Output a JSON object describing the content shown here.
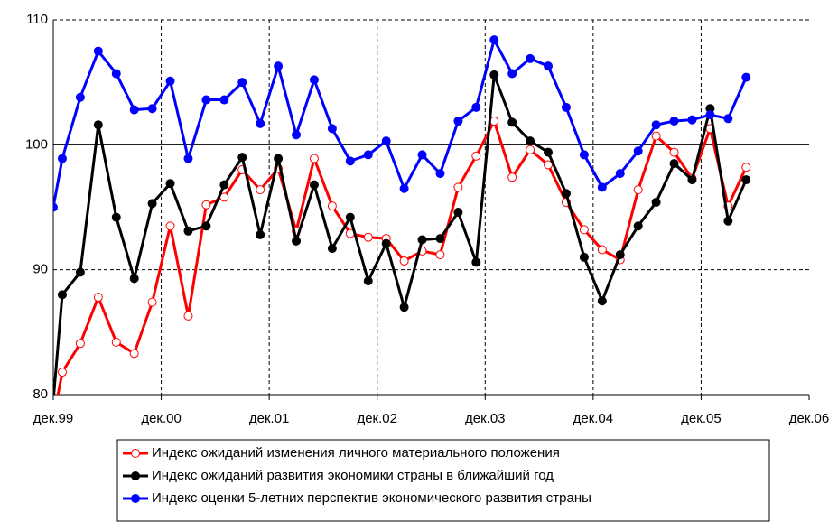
{
  "chart_data": {
    "type": "line",
    "x": [
      0,
      1,
      3,
      5,
      7,
      9,
      11,
      13,
      15,
      17,
      19,
      21,
      23,
      25,
      27,
      29,
      31,
      33,
      35,
      37,
      39,
      41,
      43,
      45,
      47,
      49,
      51,
      53,
      55,
      57,
      59,
      61,
      63,
      65,
      67,
      69,
      71,
      73,
      75,
      77
    ],
    "xlim": [
      0,
      84
    ],
    "xticks": [
      {
        "value": 0,
        "label": "дек.99"
      },
      {
        "value": 12,
        "label": "дек.00"
      },
      {
        "value": 24,
        "label": "дек.01"
      },
      {
        "value": 36,
        "label": "дек.02"
      },
      {
        "value": 48,
        "label": "дек.03"
      },
      {
        "value": 60,
        "label": "дек.04"
      },
      {
        "value": 72,
        "label": "дек.05"
      },
      {
        "value": 84,
        "label": "дек.06"
      }
    ],
    "ylim": [
      80,
      110
    ],
    "yticks": [
      80,
      90,
      100,
      110
    ],
    "grid": true,
    "series": [
      {
        "name": "Индекс ожиданий изменения личного материального положения",
        "color": "#ff0000",
        "marker_fill": "#ffffff",
        "values": [
          78,
          81.8,
          84.1,
          87.8,
          84.2,
          83.3,
          87.4,
          93.5,
          86.3,
          95.2,
          95.8,
          98,
          96.4,
          98.1,
          93.1,
          98.9,
          95.1,
          92.9,
          92.6,
          92.5,
          90.7,
          91.5,
          91.2,
          96.6,
          99.1,
          101.9,
          97.4,
          99.6,
          98.4,
          95.4,
          93.2,
          91.6,
          90.8,
          96.4,
          100.7,
          99.4,
          97.3,
          101.3,
          95.1,
          98.2
        ]
      },
      {
        "name": "Индекс ожиданий развития экономики страны в ближайший год",
        "color": "#000000",
        "marker_fill": "#000000",
        "values": [
          79.5,
          88,
          89.8,
          101.6,
          94.2,
          89.3,
          95.3,
          96.9,
          93.1,
          93.5,
          96.8,
          99,
          92.8,
          98.9,
          92.3,
          96.8,
          91.7,
          94.2,
          89.1,
          92.1,
          87,
          92.4,
          92.5,
          94.6,
          90.6,
          105.6,
          101.8,
          100.3,
          99.4,
          96.1,
          91,
          87.5,
          91.2,
          93.5,
          95.4,
          98.5,
          97.2,
          102.9,
          93.9,
          97.2
        ]
      },
      {
        "name": "Индекс оценки 5-летних перспектив экономического развития страны",
        "color": "#0000ff",
        "marker_fill": "#0000ff",
        "values": [
          95,
          98.9,
          103.8,
          107.5,
          105.7,
          102.8,
          102.9,
          105.1,
          98.9,
          103.6,
          103.6,
          105,
          101.7,
          106.3,
          100.8,
          105.2,
          101.3,
          98.7,
          99.2,
          100.3,
          96.5,
          99.2,
          97.7,
          101.9,
          103,
          108.4,
          105.7,
          106.9,
          106.3,
          103,
          99.2,
          96.6,
          97.7,
          99.5,
          101.6,
          101.9,
          102,
          102.4,
          102.1,
          105.4
        ]
      }
    ]
  }
}
